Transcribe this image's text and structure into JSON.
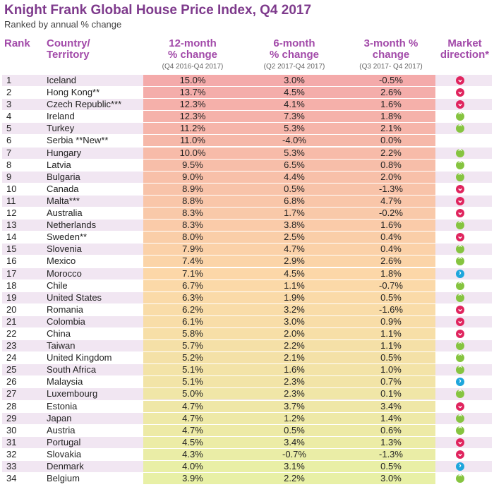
{
  "title": "Knight Frank Global House Price Index, Q4 2017",
  "subtitle": "Ranked by annual % change",
  "headers": {
    "rank": "Rank",
    "country_l1": "Country/",
    "country_l2": "Territory",
    "m12_l1": "12-month",
    "m12_l2": "% change",
    "m12_sub": "(Q4 2016-Q4 2017)",
    "m6_l1": "6-month",
    "m6_l2": "% change",
    "m6_sub": "(Q2 2017-Q4 2017)",
    "m3_l1": "3-month %",
    "m3_l2": "change",
    "m3_sub": "(Q3 2017- Q4 2017)",
    "dir_l1": "Market",
    "dir_l2": "direction*"
  },
  "colors": {
    "accent": "#a24aa9",
    "title": "#7e3a8c",
    "dir_down": "#e0245e",
    "dir_up": "#86c440",
    "dir_flat": "#1ea6dc",
    "high_bg": "#f4aaaa",
    "low_bg": "#e8f0a6"
  },
  "chart_data": {
    "type": "table",
    "title": "Knight Frank Global House Price Index, Q4 2017",
    "subtitle": "Ranked by annual % change",
    "columns": [
      "Rank",
      "Country/Territory",
      "12-month % change",
      "6-month % change",
      "3-month % change",
      "Market direction*"
    ],
    "rows": [
      {
        "rank": "1",
        "country": "Iceland",
        "m12": "15.0%",
        "m6": "3.0%",
        "m3": "-0.5%",
        "dir": "down"
      },
      {
        "rank": "2",
        "country": "Hong Kong**",
        "m12": "13.7%",
        "m6": "4.5%",
        "m3": "2.6%",
        "dir": "down"
      },
      {
        "rank": "3",
        "country": "Czech Republic***",
        "m12": "12.3%",
        "m6": "4.1%",
        "m3": "1.6%",
        "dir": "down"
      },
      {
        "rank": "4",
        "country": "Ireland",
        "m12": "12.3%",
        "m6": "7.3%",
        "m3": "1.8%",
        "dir": "up"
      },
      {
        "rank": "5",
        "country": "Turkey",
        "m12": "11.2%",
        "m6": "5.3%",
        "m3": "2.1%",
        "dir": "up"
      },
      {
        "rank": "6",
        "country": "Serbia **New**",
        "m12": "11.0%",
        "m6": "-4.0%",
        "m3": "0.0%",
        "dir": ""
      },
      {
        "rank": "7",
        "country": "Hungary",
        "m12": "10.0%",
        "m6": "5.3%",
        "m3": "2.2%",
        "dir": "up"
      },
      {
        "rank": "8",
        "country": "Latvia",
        "m12": "9.5%",
        "m6": "6.5%",
        "m3": "0.8%",
        "dir": "up"
      },
      {
        "rank": "9",
        "country": "Bulgaria",
        "m12": "9.0%",
        "m6": "4.4%",
        "m3": "2.0%",
        "dir": "up"
      },
      {
        "rank": "10",
        "country": "Canada",
        "m12": "8.9%",
        "m6": "0.5%",
        "m3": "-1.3%",
        "dir": "down"
      },
      {
        "rank": "11",
        "country": "Malta***",
        "m12": "8.8%",
        "m6": "6.8%",
        "m3": "4.7%",
        "dir": "down"
      },
      {
        "rank": "12",
        "country": "Australia",
        "m12": "8.3%",
        "m6": "1.7%",
        "m3": "-0.2%",
        "dir": "down"
      },
      {
        "rank": "13",
        "country": "Netherlands",
        "m12": "8.3%",
        "m6": "3.8%",
        "m3": "1.6%",
        "dir": "up"
      },
      {
        "rank": "14",
        "country": "Sweden**",
        "m12": "8.0%",
        "m6": "2.5%",
        "m3": "0.4%",
        "dir": "down"
      },
      {
        "rank": "15",
        "country": "Slovenia",
        "m12": "7.9%",
        "m6": "4.7%",
        "m3": "0.4%",
        "dir": "up"
      },
      {
        "rank": "16",
        "country": "Mexico",
        "m12": "7.4%",
        "m6": "2.9%",
        "m3": "2.6%",
        "dir": "up"
      },
      {
        "rank": "17",
        "country": "Morocco",
        "m12": "7.1%",
        "m6": "4.5%",
        "m3": "1.8%",
        "dir": "flat"
      },
      {
        "rank": "18",
        "country": "Chile",
        "m12": "6.7%",
        "m6": "1.1%",
        "m3": "-0.7%",
        "dir": "up"
      },
      {
        "rank": "19",
        "country": "United States",
        "m12": "6.3%",
        "m6": "1.9%",
        "m3": "0.5%",
        "dir": "up"
      },
      {
        "rank": "20",
        "country": "Romania",
        "m12": "6.2%",
        "m6": "3.2%",
        "m3": "-1.6%",
        "dir": "down"
      },
      {
        "rank": "21",
        "country": "Colombia",
        "m12": "6.1%",
        "m6": "3.0%",
        "m3": "0.9%",
        "dir": "down"
      },
      {
        "rank": "22",
        "country": "China",
        "m12": "5.8%",
        "m6": "2.0%",
        "m3": "1.1%",
        "dir": "down"
      },
      {
        "rank": "23",
        "country": "Taiwan",
        "m12": "5.7%",
        "m6": "2.2%",
        "m3": "1.1%",
        "dir": "up"
      },
      {
        "rank": "24",
        "country": "United Kingdom",
        "m12": "5.2%",
        "m6": "2.1%",
        "m3": "0.5%",
        "dir": "up"
      },
      {
        "rank": "25",
        "country": "South Africa",
        "m12": "5.1%",
        "m6": "1.6%",
        "m3": "1.0%",
        "dir": "up"
      },
      {
        "rank": "26",
        "country": "Malaysia",
        "m12": "5.1%",
        "m6": "2.3%",
        "m3": "0.7%",
        "dir": "flat"
      },
      {
        "rank": "27",
        "country": "Luxembourg",
        "m12": "5.0%",
        "m6": "2.3%",
        "m3": "0.1%",
        "dir": "up"
      },
      {
        "rank": "28",
        "country": "Estonia",
        "m12": "4.7%",
        "m6": "3.7%",
        "m3": "3.4%",
        "dir": "down"
      },
      {
        "rank": "29",
        "country": "Japan",
        "m12": "4.7%",
        "m6": "1.2%",
        "m3": "1.4%",
        "dir": "up"
      },
      {
        "rank": "30",
        "country": "Austria",
        "m12": "4.7%",
        "m6": "0.5%",
        "m3": "0.6%",
        "dir": "up"
      },
      {
        "rank": "31",
        "country": "Portugal",
        "m12": "4.5%",
        "m6": "3.4%",
        "m3": "1.3%",
        "dir": "down"
      },
      {
        "rank": "32",
        "country": "Slovakia",
        "m12": "4.3%",
        "m6": "-0.7%",
        "m3": "-1.3%",
        "dir": "down"
      },
      {
        "rank": "33",
        "country": "Denmark",
        "m12": "4.0%",
        "m6": "3.1%",
        "m3": "0.5%",
        "dir": "flat"
      },
      {
        "rank": "34",
        "country": "Belgium",
        "m12": "3.9%",
        "m6": "2.2%",
        "m3": "3.0%",
        "dir": "up"
      }
    ]
  }
}
